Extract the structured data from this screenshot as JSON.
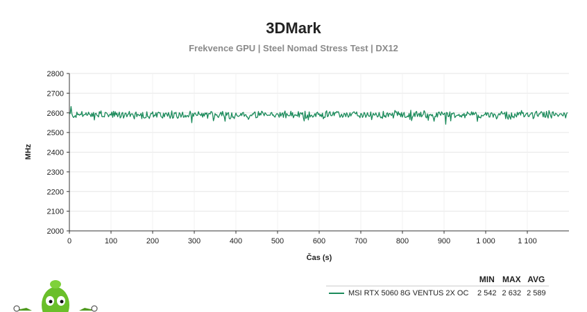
{
  "chart_data": {
    "type": "line",
    "title": "3DMark",
    "subtitle": "Frekvence GPU | Steel Nomad Stress Test | DX12",
    "xlabel": "Čas (s)",
    "ylabel": "MHz",
    "xlim": [
      0,
      1200
    ],
    "ylim": [
      2000,
      2800
    ],
    "x_ticks": [
      0,
      100,
      200,
      300,
      400,
      500,
      600,
      700,
      800,
      900,
      1000,
      1100
    ],
    "x_tick_labels": [
      "0",
      "100",
      "200",
      "300",
      "400",
      "500",
      "600",
      "700",
      "800",
      "900",
      "1 000",
      "1 100"
    ],
    "y_ticks": [
      2000,
      2100,
      2200,
      2300,
      2400,
      2500,
      2600,
      2700,
      2800
    ],
    "y_tick_labels": [
      "2000",
      "2100",
      "2200",
      "2300",
      "2400",
      "2500",
      "2600",
      "2700",
      "2800"
    ],
    "grid": true,
    "legend_position": "bottom-right",
    "series": [
      {
        "name": "MSI RTX 5060 8G VENTUS 2X OC",
        "color": "#1a8a5a",
        "min": 2542,
        "max": 2632,
        "avg": 2589,
        "x_end": 1196
      }
    ]
  },
  "legend": {
    "columns": [
      "MIN",
      "MAX",
      "AVG"
    ],
    "rows": [
      {
        "name": "MSI RTX 5060 8G VENTUS 2X OC",
        "min": "2 542",
        "max": "2 632",
        "avg": "2 589"
      }
    ]
  }
}
